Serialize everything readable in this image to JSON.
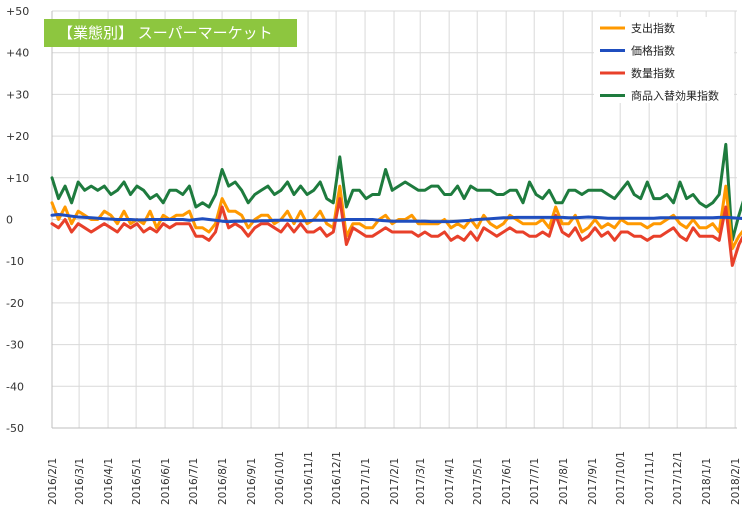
{
  "chart_data": {
    "type": "line",
    "title": "【業態別】 スーパーマーケット",
    "title_bg_color": "#8DC63F",
    "xlabel": "",
    "ylabel": "",
    "ylim": [
      -50,
      50
    ],
    "y_ticks": [
      50,
      40,
      30,
      20,
      10,
      0,
      -10,
      -20,
      -30,
      -40,
      -50
    ],
    "y_tick_labels": [
      "+50",
      "+40",
      "+30",
      "+20",
      "+10",
      "0",
      "-10",
      "-20",
      "-30",
      "-40",
      "-50"
    ],
    "grid": true,
    "legend_position": "top-right",
    "x_start": "2016/2/1",
    "x_interval_days": 7,
    "x_tick_labels": [
      "2016/2/1",
      "2016/3/1",
      "2016/4/1",
      "2016/5/1",
      "2016/6/1",
      "2016/7/1",
      "2016/8/1",
      "2016/9/1",
      "2016/10/1",
      "2016/11/1",
      "2016/12/1",
      "2017/1/1",
      "2017/2/1",
      "2017/3/1",
      "2017/4/1",
      "2017/5/1",
      "2017/6/1",
      "2017/7/1",
      "2017/8/1",
      "2017/9/1",
      "2017/10/1",
      "2017/11/1",
      "2017/12/1",
      "2018/1/1",
      "2018/2/1"
    ],
    "series": [
      {
        "name": "支出指数",
        "color": "#FF9900",
        "values": [
          4,
          0,
          3,
          -1,
          2,
          1,
          0,
          0,
          2,
          1,
          -1,
          2,
          -1,
          0,
          -1,
          2,
          -2,
          1,
          0,
          1,
          1,
          2,
          -2,
          -2,
          -3,
          -1,
          5,
          2,
          2,
          1,
          -2,
          0,
          1,
          1,
          -1,
          0,
          2,
          -1,
          2,
          -1,
          0,
          2,
          -1,
          -2,
          8,
          -4,
          -1,
          -1,
          -2,
          -2,
          0,
          1,
          -1,
          0,
          0,
          1,
          -1,
          -1,
          -1,
          -1,
          0,
          -2,
          -1,
          -2,
          0,
          -2,
          1,
          -1,
          -2,
          -1,
          1,
          0,
          -1,
          -1,
          -1,
          0,
          -2,
          3,
          -1,
          -1,
          1,
          -3,
          -2,
          0,
          -2,
          -1,
          -2,
          0,
          -1,
          -1,
          -1,
          -2,
          -1,
          -1,
          0,
          1,
          -1,
          -2,
          0,
          -2,
          -2,
          -1,
          -3,
          8,
          -7,
          -4,
          -2,
          -1,
          -2,
          -1,
          -3
        ]
      },
      {
        "name": "価格指数",
        "color": "#1F4EBF",
        "values": [
          1,
          1.2,
          1,
          0.8,
          0.6,
          0.5,
          0.4,
          0.3,
          0.2,
          0.1,
          0,
          0,
          0,
          -0.1,
          -0.1,
          0,
          0,
          0,
          0,
          0,
          0,
          -0.2,
          0,
          0.2,
          0,
          -0.2,
          -0.4,
          -0.5,
          -0.4,
          -0.4,
          -0.3,
          -0.4,
          -0.3,
          -0.3,
          -0.2,
          -0.2,
          -0.2,
          -0.3,
          -0.3,
          -0.3,
          -0.2,
          -0.2,
          -0.2,
          -0.2,
          -0.2,
          0,
          0,
          0,
          0,
          0,
          -0.2,
          -0.3,
          -0.4,
          -0.4,
          -0.4,
          -0.4,
          -0.4,
          -0.4,
          -0.5,
          -0.5,
          -0.5,
          -0.5,
          -0.4,
          -0.3,
          -0.2,
          0,
          0.1,
          0.2,
          0.3,
          0.4,
          0.4,
          0.5,
          0.5,
          0.5,
          0.5,
          0.5,
          0.5,
          0.5,
          0.5,
          0.4,
          0.4,
          0.5,
          0.6,
          0.5,
          0.4,
          0.3,
          0.3,
          0.3,
          0.3,
          0.3,
          0.3,
          0.3,
          0.3,
          0.4,
          0.4,
          0.4,
          0.4,
          0.4,
          0.4,
          0.4,
          0.4,
          0.4,
          0.5,
          0.5,
          0.4,
          0.3,
          0.2,
          0.1,
          0,
          0,
          0
        ]
      },
      {
        "name": "数量指数",
        "color": "#E8402A",
        "values": [
          -1,
          -2,
          0,
          -3,
          -1,
          -2,
          -3,
          -2,
          -1,
          -2,
          -3,
          -1,
          -2,
          -1,
          -3,
          -2,
          -3,
          -1,
          -2,
          -1,
          -1,
          -1,
          -4,
          -4,
          -5,
          -3,
          3,
          -2,
          -1,
          -2,
          -4,
          -2,
          -1,
          -1,
          -2,
          -3,
          -1,
          -3,
          -1,
          -3,
          -3,
          -2,
          -4,
          -3,
          5,
          -6,
          -2,
          -3,
          -4,
          -4,
          -3,
          -2,
          -3,
          -3,
          -3,
          -3,
          -4,
          -3,
          -4,
          -4,
          -3,
          -5,
          -4,
          -5,
          -3,
          -5,
          -2,
          -3,
          -4,
          -3,
          -2,
          -3,
          -3,
          -4,
          -4,
          -3,
          -4,
          1,
          -3,
          -4,
          -2,
          -5,
          -4,
          -2,
          -4,
          -3,
          -5,
          -3,
          -3,
          -4,
          -4,
          -5,
          -4,
          -4,
          -3,
          -2,
          -4,
          -5,
          -2,
          -4,
          -4,
          -4,
          -5,
          3,
          -11,
          -6,
          -3,
          -4,
          -3,
          -4,
          -5
        ]
      },
      {
        "name": "商品入替効果指数",
        "color": "#1E7B3E",
        "values": [
          10,
          5,
          8,
          4,
          9,
          7,
          8,
          7,
          8,
          6,
          7,
          9,
          6,
          8,
          7,
          5,
          6,
          4,
          7,
          7,
          6,
          8,
          3,
          4,
          3,
          6,
          12,
          8,
          9,
          7,
          4,
          6,
          7,
          8,
          6,
          7,
          9,
          6,
          8,
          6,
          7,
          9,
          5,
          4,
          15,
          3,
          7,
          7,
          5,
          6,
          6,
          12,
          7,
          8,
          9,
          8,
          7,
          7,
          8,
          8,
          6,
          6,
          8,
          5,
          8,
          7,
          7,
          7,
          6,
          6,
          7,
          7,
          4,
          9,
          6,
          5,
          7,
          4,
          4,
          7,
          7,
          6,
          7,
          7,
          7,
          6,
          5,
          7,
          9,
          6,
          5,
          9,
          5,
          5,
          6,
          4,
          9,
          5,
          6,
          4,
          3,
          4,
          6,
          18,
          -5,
          1,
          6,
          3,
          5,
          4,
          3
        ]
      }
    ]
  }
}
